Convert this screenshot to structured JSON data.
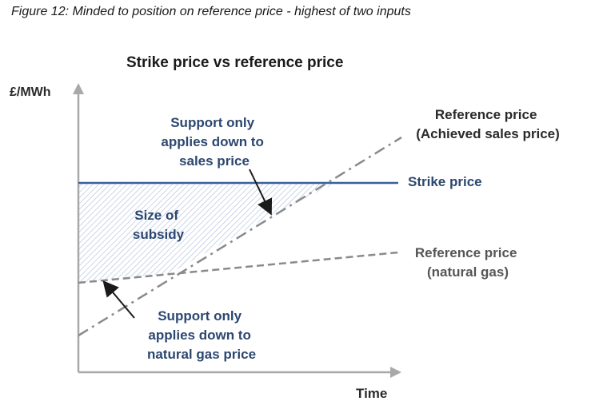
{
  "caption": "Figure 12: Minded to position on reference price - highest of two inputs",
  "title": "Strike price vs reference price",
  "y_axis_label": "£/MWh",
  "x_axis_label": "Time",
  "labels": {
    "ref_achieved_line1": "Reference price",
    "ref_achieved_line2": "(Achieved sales price)",
    "strike": "Strike price",
    "ref_gas_line1": "Reference price",
    "ref_gas_line2": "(natural gas)",
    "support_sales_line1": "Support only",
    "support_sales_line2": "applies down to",
    "support_sales_line3": "sales price",
    "subsidy_line1": "Size of",
    "subsidy_line2": "subsidy",
    "support_gas_line1": "Support only",
    "support_gas_line2": "applies down to",
    "support_gas_line3": "natural gas price"
  },
  "colors": {
    "strike_line": "#3a5f9a",
    "reference_lines": "#8a8a8a",
    "axis": "#a8a8a8",
    "label_blue": "#2c4770",
    "label_dark": "#2a2a2a",
    "hatch": "#a9bcd8"
  }
}
